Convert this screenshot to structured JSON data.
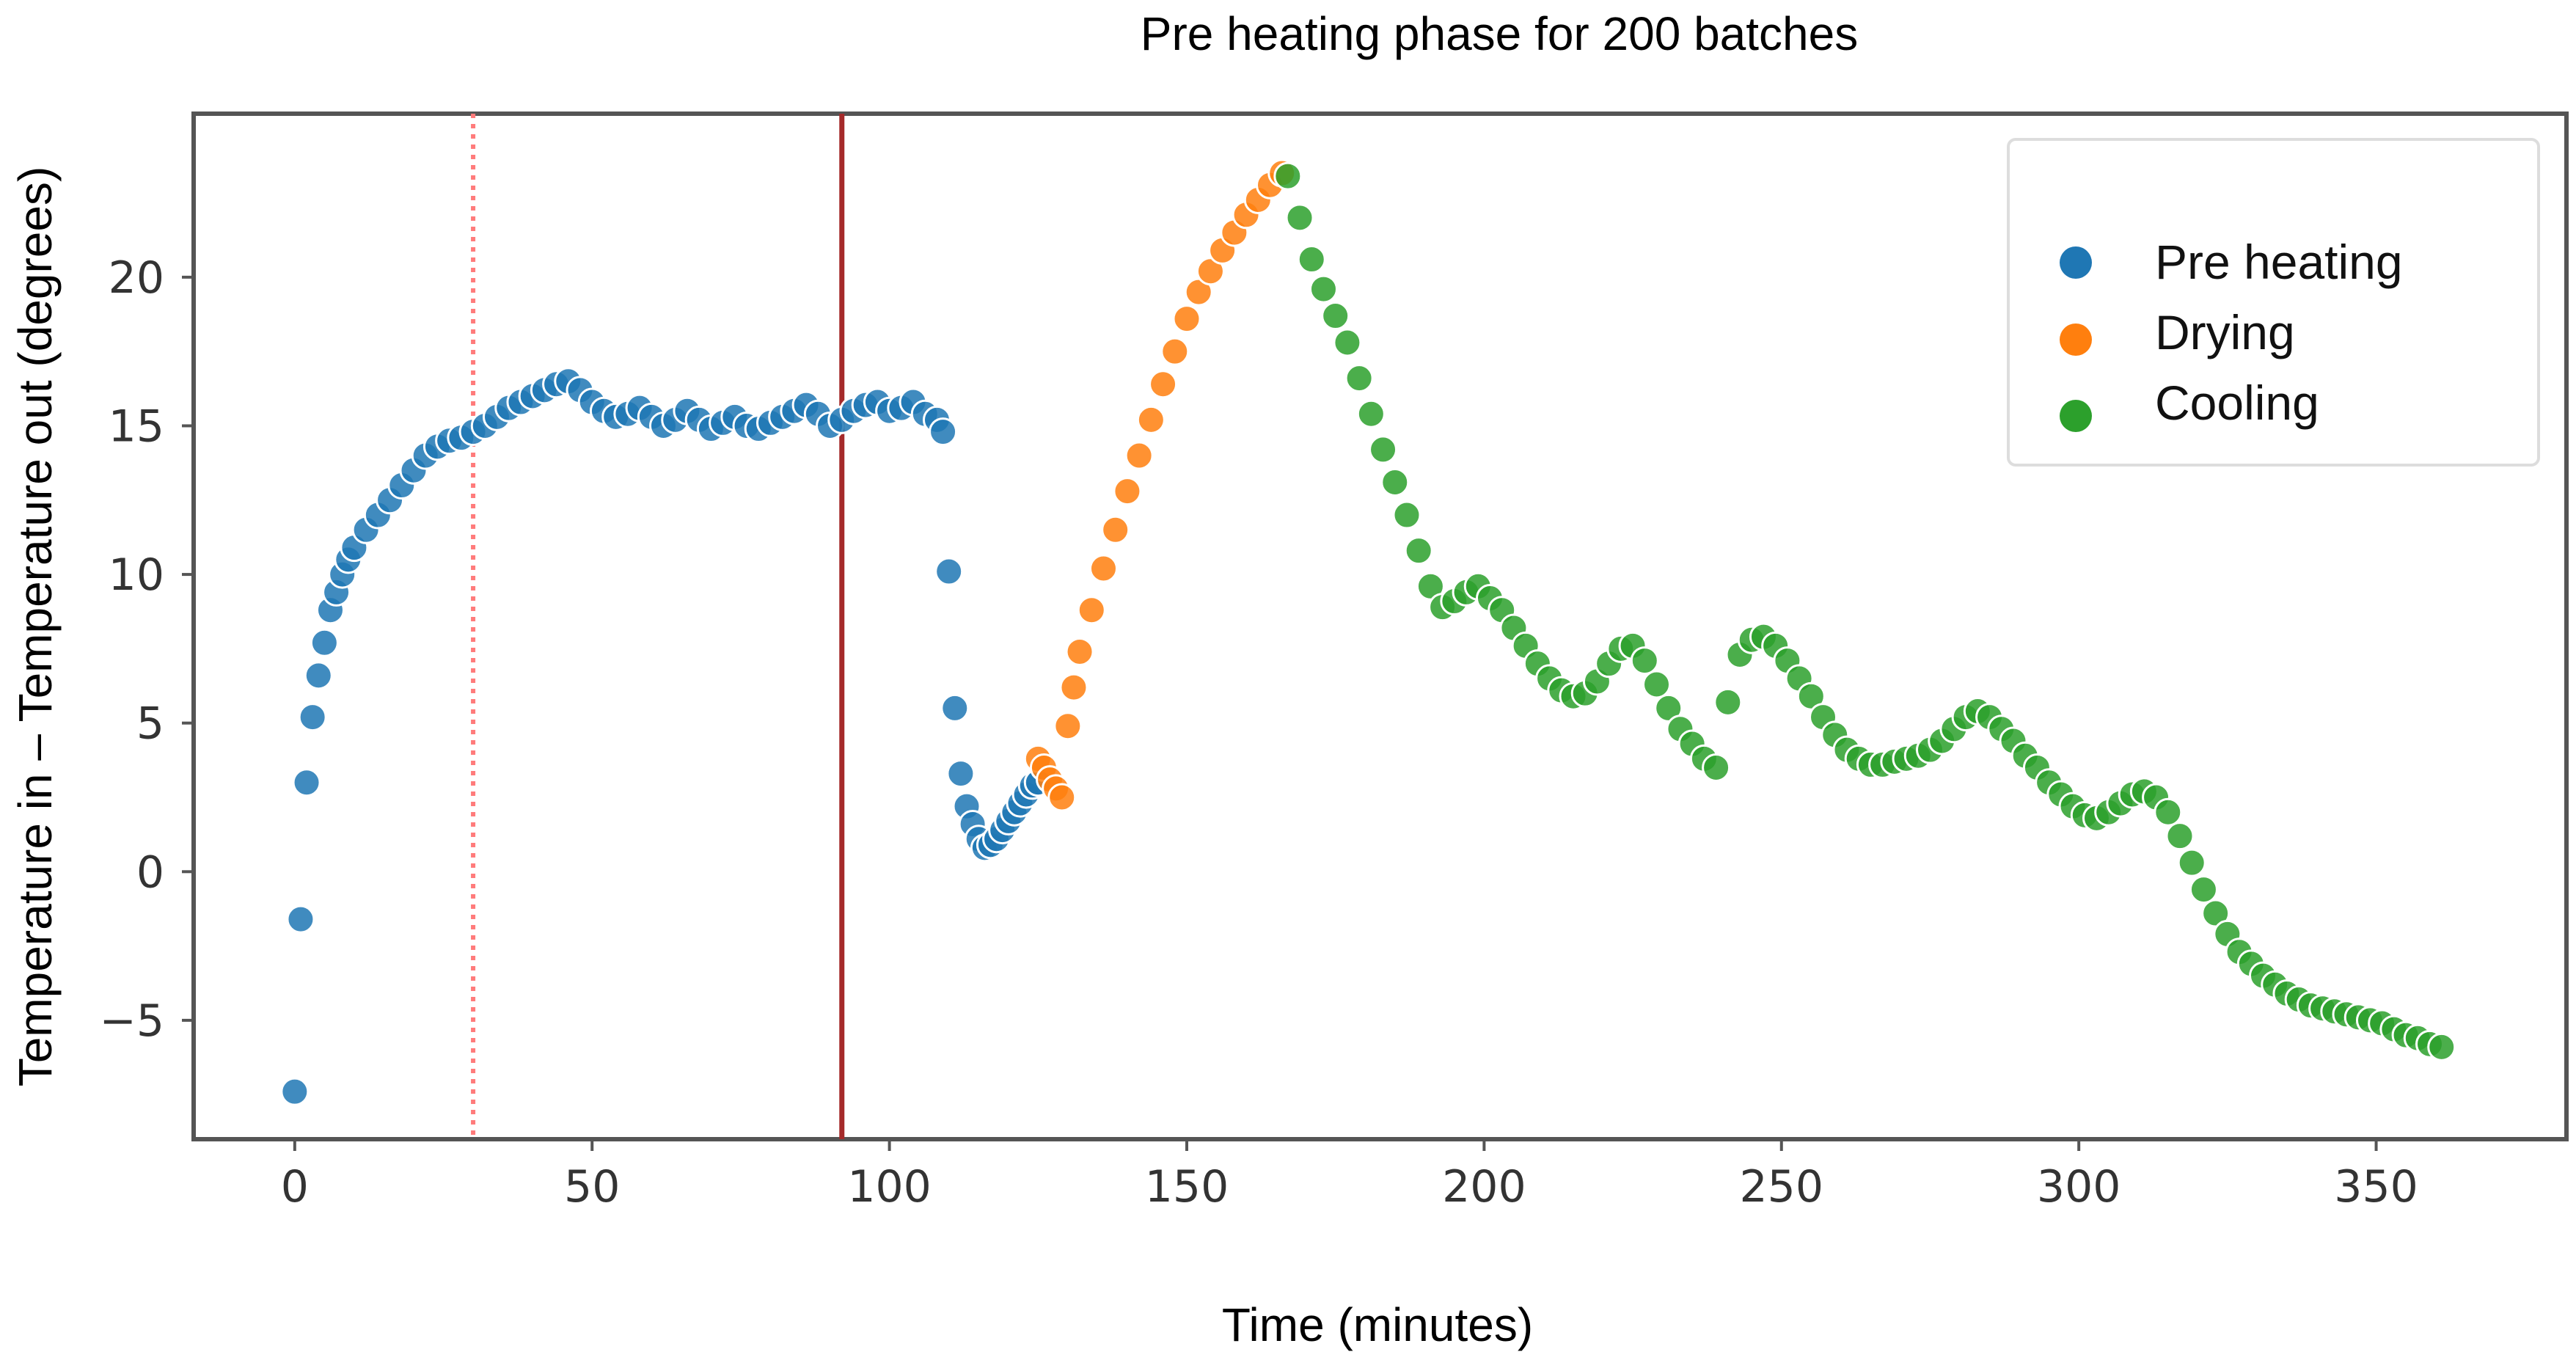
{
  "chart_data": {
    "type": "scatter",
    "title": "Pre heating phase for 200 batches",
    "xlabel": "Time (minutes)",
    "ylabel": "Temperature in – Temperature out (degrees)",
    "xlim": [
      -17,
      382
    ],
    "ylim": [
      -9,
      25.5
    ],
    "xticks": [
      0,
      50,
      100,
      150,
      200,
      250,
      300,
      350
    ],
    "yticks": [
      -5,
      0,
      5,
      10,
      15,
      20
    ],
    "xtick_labels": [
      "0",
      "50",
      "100",
      "150",
      "200",
      "250",
      "300",
      "350"
    ],
    "ytick_labels": [
      "−5",
      "0",
      "5",
      "10",
      "15",
      "20"
    ],
    "grid": false,
    "legend_position": "top-right",
    "vlines": [
      {
        "x": 30,
        "style": "dotted",
        "color": "#ff7b7b"
      },
      {
        "x": 92,
        "style": "solid",
        "color": "#a52a2a"
      }
    ],
    "series": [
      {
        "name": "Pre heating",
        "color": "#1f77b4",
        "x": [
          0,
          1,
          2,
          3,
          4,
          5,
          6,
          7,
          8,
          9,
          10,
          12,
          14,
          16,
          18,
          20,
          22,
          24,
          26,
          28,
          30,
          32,
          34,
          36,
          38,
          40,
          42,
          44,
          46,
          48,
          50,
          52,
          54,
          56,
          58,
          60,
          62,
          64,
          66,
          68,
          70,
          72,
          74,
          76,
          78,
          80,
          82,
          84,
          86,
          88,
          90,
          92,
          94,
          96,
          98,
          100,
          102,
          104,
          106,
          108,
          109,
          110,
          111,
          112,
          113,
          114,
          115,
          116,
          117,
          118,
          119,
          120,
          121,
          122,
          123,
          124,
          125
        ],
        "y": [
          -7.4,
          -1.6,
          3.0,
          5.2,
          6.6,
          7.7,
          8.8,
          9.4,
          10.0,
          10.5,
          10.9,
          11.5,
          12.0,
          12.5,
          13.0,
          13.5,
          14.0,
          14.3,
          14.5,
          14.6,
          14.8,
          15.0,
          15.3,
          15.6,
          15.8,
          16.0,
          16.2,
          16.4,
          16.5,
          16.2,
          15.8,
          15.5,
          15.3,
          15.4,
          15.6,
          15.3,
          15.0,
          15.2,
          15.5,
          15.2,
          14.9,
          15.1,
          15.3,
          15.0,
          14.9,
          15.1,
          15.3,
          15.5,
          15.7,
          15.4,
          15.0,
          15.2,
          15.5,
          15.7,
          15.8,
          15.5,
          15.6,
          15.8,
          15.4,
          15.2,
          14.8,
          10.1,
          5.5,
          3.3,
          2.2,
          1.6,
          1.1,
          0.8,
          0.9,
          1.1,
          1.4,
          1.7,
          2.0,
          2.3,
          2.6,
          2.9,
          3.0
        ]
      },
      {
        "name": "Drying",
        "color": "#ff7f0e",
        "x": [
          125,
          126,
          127,
          128,
          129,
          130,
          131,
          132,
          134,
          136,
          138,
          140,
          142,
          144,
          146,
          148,
          150,
          152,
          154,
          156,
          158,
          160,
          162,
          164,
          166
        ],
        "y": [
          3.8,
          3.5,
          3.1,
          2.8,
          2.5,
          4.9,
          6.2,
          7.4,
          8.8,
          10.2,
          11.5,
          12.8,
          14.0,
          15.2,
          16.4,
          17.5,
          18.6,
          19.5,
          20.2,
          20.9,
          21.5,
          22.1,
          22.6,
          23.1,
          23.5
        ]
      },
      {
        "name": "Cooling",
        "color": "#2ca02c",
        "x": [
          167,
          169,
          171,
          173,
          175,
          177,
          179,
          181,
          183,
          185,
          187,
          189,
          191,
          193,
          195,
          197,
          199,
          201,
          203,
          205,
          207,
          209,
          211,
          213,
          215,
          217,
          219,
          221,
          223,
          225,
          227,
          229,
          231,
          233,
          235,
          237,
          239,
          241,
          243,
          245,
          247,
          249,
          251,
          253,
          255,
          257,
          259,
          261,
          263,
          265,
          267,
          269,
          271,
          273,
          275,
          277,
          279,
          281,
          283,
          285,
          287,
          289,
          291,
          293,
          295,
          297,
          299,
          301,
          303,
          305,
          307,
          309,
          311,
          313,
          315,
          317,
          319,
          321,
          323,
          325,
          327,
          329,
          331,
          333,
          335,
          337,
          339,
          341,
          343,
          345,
          347,
          349,
          351,
          353,
          355,
          357,
          359,
          361
        ],
        "y": [
          23.4,
          22.0,
          20.6,
          19.6,
          18.7,
          17.8,
          16.6,
          15.4,
          14.2,
          13.1,
          12.0,
          10.8,
          9.6,
          8.9,
          9.1,
          9.4,
          9.6,
          9.2,
          8.8,
          8.2,
          7.6,
          7.0,
          6.5,
          6.1,
          5.9,
          6.0,
          6.4,
          7.0,
          7.5,
          7.6,
          7.1,
          6.3,
          5.5,
          4.8,
          4.3,
          3.8,
          3.5,
          5.7,
          7.3,
          7.8,
          7.9,
          7.6,
          7.1,
          6.5,
          5.9,
          5.2,
          4.6,
          4.1,
          3.8,
          3.6,
          3.6,
          3.7,
          3.8,
          3.9,
          4.1,
          4.4,
          4.8,
          5.2,
          5.4,
          5.2,
          4.8,
          4.4,
          3.9,
          3.5,
          3.0,
          2.6,
          2.2,
          1.9,
          1.8,
          2.0,
          2.3,
          2.6,
          2.7,
          2.5,
          2.0,
          1.2,
          0.3,
          -0.6,
          -1.4,
          -2.1,
          -2.7,
          -3.1,
          -3.5,
          -3.8,
          -4.1,
          -4.3,
          -4.5,
          -4.6,
          -4.7,
          -4.8,
          -4.9,
          -5.0,
          -5.1,
          -5.3,
          -5.5,
          -5.6,
          -5.8,
          -5.9
        ]
      }
    ]
  }
}
